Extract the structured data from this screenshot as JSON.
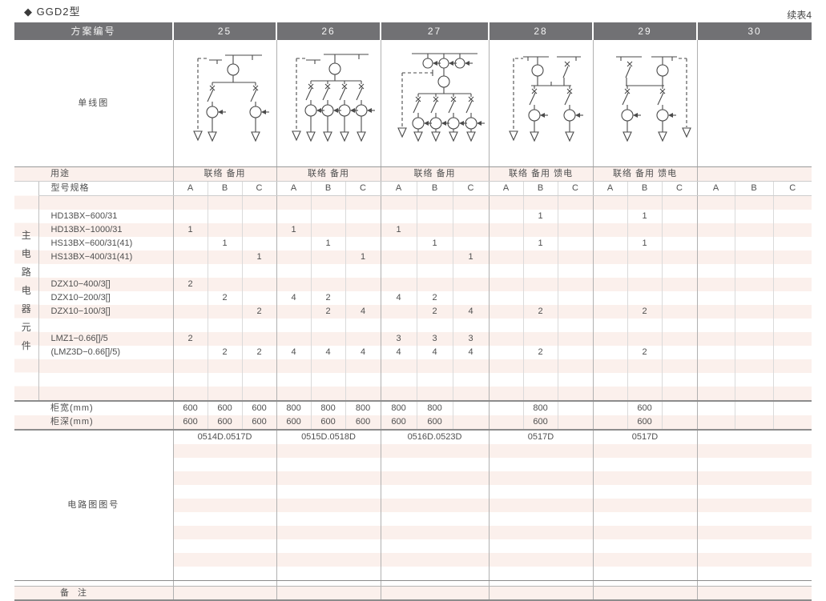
{
  "page": {
    "title": "◆ GGD2型",
    "continuation_note": "续表4"
  },
  "table": {
    "plan_header": {
      "label": "方案编号",
      "schemes": [
        "25",
        "26",
        "27",
        "28",
        "29",
        "30"
      ]
    },
    "diagram_row": {
      "label": "单线图",
      "diagrams": [
        "two-feeder-with-isolator",
        "four-feeder-with-isolator",
        "four-feeder-with-bus-cts",
        "incomer-left-two-feeder",
        "incomer-right-two-feeder",
        ""
      ]
    },
    "usage_row": {
      "label": "用途",
      "values": [
        "联络 备用",
        "联络 备用",
        "联络 备用",
        "联络 备用 馈电",
        "联络 备用 馈电",
        ""
      ]
    },
    "spec_header_row": {
      "label": "型号规格",
      "subcolumns": [
        "A",
        "B",
        "C"
      ]
    },
    "side_label": "主电路电器元件",
    "component_rows": [
      {
        "label": "",
        "cells": [
          "",
          "",
          "",
          "",
          "",
          "",
          "",
          "",
          "",
          "",
          "",
          "",
          "",
          "",
          "",
          "",
          "",
          ""
        ]
      },
      {
        "label": "HD13BX−600/31",
        "cells": [
          "",
          "",
          "",
          "",
          "",
          "",
          "",
          "",
          "",
          "",
          "1",
          "",
          "",
          "1",
          "",
          "",
          "",
          ""
        ]
      },
      {
        "label": "HD13BX−1000/31",
        "cells": [
          "1",
          "",
          "",
          "1",
          "",
          "",
          "1",
          "",
          "",
          "",
          "",
          "",
          "",
          "",
          "",
          "",
          "",
          ""
        ]
      },
      {
        "label": "HS13BX−600/31(41)",
        "cells": [
          "",
          "1",
          "",
          "",
          "1",
          "",
          "",
          "1",
          "",
          "",
          "1",
          "",
          "",
          "1",
          "",
          "",
          "",
          ""
        ]
      },
      {
        "label": "HS13BX−400/31(41)",
        "cells": [
          "",
          "",
          "1",
          "",
          "",
          "1",
          "",
          "",
          "1",
          "",
          "",
          "",
          "",
          "",
          "",
          "",
          "",
          ""
        ]
      },
      {
        "label": "",
        "cells": [
          "",
          "",
          "",
          "",
          "",
          "",
          "",
          "",
          "",
          "",
          "",
          "",
          "",
          "",
          "",
          "",
          "",
          ""
        ]
      },
      {
        "label": "DZX10−400/3[]",
        "cells": [
          "2",
          "",
          "",
          "",
          "",
          "",
          "",
          "",
          "",
          "",
          "",
          "",
          "",
          "",
          "",
          "",
          "",
          ""
        ]
      },
      {
        "label": "DZX10−200/3[]",
        "cells": [
          "",
          "2",
          "",
          "4",
          "2",
          "",
          "4",
          "2",
          "",
          "",
          "",
          "",
          "",
          "",
          "",
          "",
          "",
          ""
        ]
      },
      {
        "label": "DZX10−100/3[]",
        "cells": [
          "",
          "",
          "2",
          "",
          "2",
          "4",
          "",
          "2",
          "4",
          "",
          "2",
          "",
          "",
          "2",
          "",
          "",
          "",
          ""
        ]
      },
      {
        "label": "",
        "cells": [
          "",
          "",
          "",
          "",
          "",
          "",
          "",
          "",
          "",
          "",
          "",
          "",
          "",
          "",
          "",
          "",
          "",
          ""
        ]
      },
      {
        "label": "LMZ1−0.66[]/5",
        "cells": [
          "2",
          "",
          "",
          "",
          "",
          "",
          "3",
          "3",
          "3",
          "",
          "",
          "",
          "",
          "",
          "",
          "",
          "",
          ""
        ]
      },
      {
        "label": "(LMZ3D−0.66[]/5)",
        "cells": [
          "",
          "2",
          "2",
          "4",
          "4",
          "4",
          "4",
          "4",
          "4",
          "",
          "2",
          "",
          "",
          "2",
          "",
          "",
          "",
          ""
        ]
      },
      {
        "label": "",
        "cells": [
          "",
          "",
          "",
          "",
          "",
          "",
          "",
          "",
          "",
          "",
          "",
          "",
          "",
          "",
          "",
          "",
          "",
          ""
        ]
      },
      {
        "label": "",
        "cells": [
          "",
          "",
          "",
          "",
          "",
          "",
          "",
          "",
          "",
          "",
          "",
          "",
          "",
          "",
          "",
          "",
          "",
          ""
        ]
      },
      {
        "label": "",
        "cells": [
          "",
          "",
          "",
          "",
          "",
          "",
          "",
          "",
          "",
          "",
          "",
          "",
          "",
          "",
          "",
          "",
          "",
          ""
        ]
      }
    ],
    "cabinet_width_row": {
      "label": "柜宽(mm)",
      "cells": [
        "600",
        "600",
        "600",
        "800",
        "800",
        "800",
        "800",
        "800",
        "",
        "",
        "800",
        "",
        "",
        "600",
        "",
        "",
        "",
        ""
      ]
    },
    "cabinet_depth_row": {
      "label": "柜深(mm)",
      "cells": [
        "600",
        "600",
        "600",
        "600",
        "600",
        "600",
        "600",
        "600",
        "",
        "",
        "600",
        "",
        "",
        "600",
        "",
        "",
        "",
        ""
      ]
    },
    "circuit_no_row": {
      "label": "电路图图号",
      "values": [
        "0514D.0517D",
        "0515D.0518D",
        "0516D.0523D",
        "0517D",
        "0517D",
        ""
      ],
      "empty_stripe_rows": 10
    },
    "remark_row": {
      "label": "备 注"
    }
  }
}
